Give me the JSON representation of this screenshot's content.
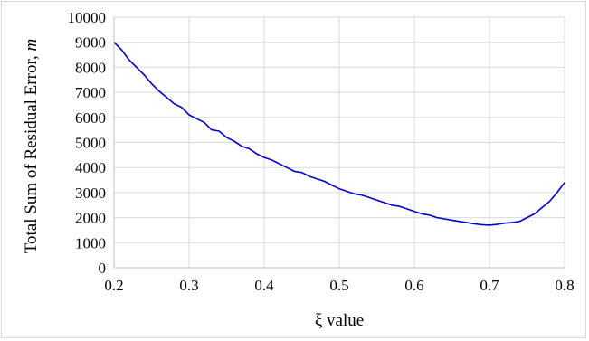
{
  "chart_data": {
    "type": "line",
    "title": "",
    "xlabel": "ξ value",
    "ylabel_main": "Total Sum of Residual Error, ",
    "ylabel_unit": "m",
    "xlim": [
      0.2,
      0.8
    ],
    "ylim": [
      0,
      10000
    ],
    "x_ticks": [
      "0.2",
      "0.3",
      "0.4",
      "0.5",
      "0.6",
      "0.7",
      "0.8"
    ],
    "y_ticks": [
      "0",
      "1000",
      "2000",
      "3000",
      "4000",
      "5000",
      "6000",
      "7000",
      "8000",
      "9000",
      "10000"
    ],
    "grid": true,
    "legend": "none",
    "series": [
      {
        "color": "#0000cc",
        "x": [
          0.2,
          0.21,
          0.22,
          0.23,
          0.24,
          0.25,
          0.26,
          0.27,
          0.28,
          0.29,
          0.3,
          0.31,
          0.32,
          0.33,
          0.34,
          0.35,
          0.36,
          0.37,
          0.38,
          0.39,
          0.4,
          0.41,
          0.42,
          0.43,
          0.44,
          0.45,
          0.46,
          0.47,
          0.48,
          0.49,
          0.5,
          0.51,
          0.52,
          0.53,
          0.54,
          0.55,
          0.56,
          0.57,
          0.58,
          0.59,
          0.6,
          0.61,
          0.62,
          0.63,
          0.64,
          0.65,
          0.66,
          0.67,
          0.68,
          0.69,
          0.7,
          0.71,
          0.72,
          0.73,
          0.74,
          0.75,
          0.76,
          0.77,
          0.78,
          0.79,
          0.8
        ],
        "y": [
          9000,
          8700,
          8300,
          8000,
          7700,
          7350,
          7050,
          6800,
          6550,
          6400,
          6100,
          5950,
          5800,
          5500,
          5450,
          5200,
          5050,
          4850,
          4750,
          4550,
          4400,
          4300,
          4150,
          4000,
          3850,
          3800,
          3650,
          3550,
          3450,
          3300,
          3150,
          3050,
          2950,
          2900,
          2800,
          2700,
          2600,
          2500,
          2450,
          2350,
          2250,
          2150,
          2100,
          2000,
          1950,
          1900,
          1850,
          1800,
          1750,
          1720,
          1700,
          1730,
          1780,
          1800,
          1850,
          2000,
          2150,
          2400,
          2650,
          3000,
          3400
        ]
      }
    ]
  }
}
